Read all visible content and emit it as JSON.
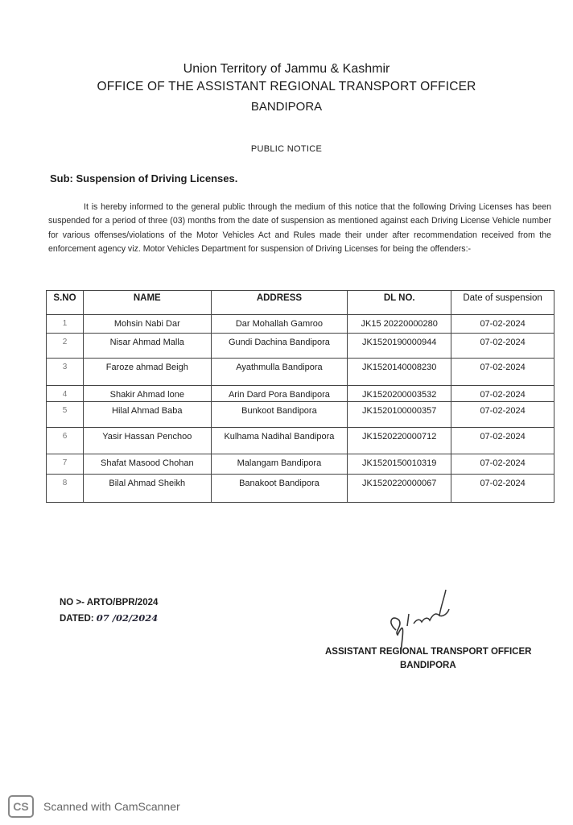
{
  "header": {
    "line1": "Union Territory of Jammu & Kashmir",
    "line2": "OFFICE OF THE ASSISTANT REGIONAL TRANSPORT OFFICER",
    "line3": "BANDIPORA"
  },
  "notice_title": "PUBLIC NOTICE",
  "subject": "Sub: Suspension of Driving Licenses.",
  "body": "It is hereby informed to the general public through the medium of this notice that the following Driving Licenses has been suspended for a period of three (03) months from the date of suspension as mentioned against each Driving License Vehicle number for various offenses/violations of the Motor Vehicles Act and Rules made their under after recommendation received from the enforcement agency viz. Motor Vehicles Department for suspension of Driving Licenses for being the offenders:-",
  "table": {
    "headers": [
      "S.NO",
      "NAME",
      "ADDRESS",
      "DL NO.",
      "Date of suspension"
    ],
    "rows": [
      [
        "1",
        "Mohsin Nabi Dar",
        "Dar Mohallah Gamroo",
        "JK15 20220000280",
        "07-02-2024"
      ],
      [
        "2",
        "Nisar Ahmad Malla",
        "Gundi Dachina Bandipora",
        "JK1520190000944",
        "07-02-2024"
      ],
      [
        "3",
        "Faroze ahmad Beigh",
        "Ayathmulla Bandipora",
        "JK1520140008230",
        "07-02-2024"
      ],
      [
        "4",
        "Shakir Ahmad lone",
        "Arin Dard Pora Bandipora",
        "JK1520200003532",
        "07-02-2024"
      ],
      [
        "5",
        "Hilal Ahmad Baba",
        "Bunkoot Bandipora",
        "JK1520100000357",
        "07-02-2024"
      ],
      [
        "6",
        "Yasir Hassan Penchoo",
        "Kulhama Nadihal Bandipora",
        "JK1520220000712",
        "07-02-2024"
      ],
      [
        "7",
        "Shafat Masood Chohan",
        "Malangam Bandipora",
        "JK1520150010319",
        "07-02-2024"
      ],
      [
        "8",
        "Bilal Ahmad Sheikh",
        "Banakoot  Bandipora",
        "JK1520220000067",
        "07-02-2024"
      ]
    ]
  },
  "footer": {
    "number": "NO >- ARTO/BPR/2024",
    "dated_label": "DATED:",
    "dated_value": "07 /02/2024",
    "signatory_title": "ASSISTANT REGIONAL TRANSPORT OFFICER",
    "signatory_place": "BANDIPORA"
  },
  "watermark": {
    "logo": "CS",
    "text": "Scanned with CamScanner"
  }
}
